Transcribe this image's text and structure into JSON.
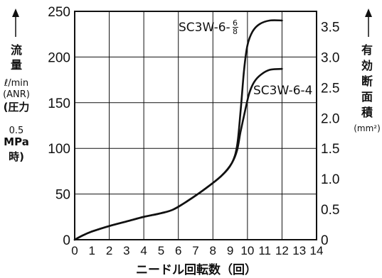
{
  "chart_data": {
    "type": "line",
    "x": {
      "label": "ニードル回転数（回）",
      "range": [
        0,
        14
      ],
      "tick_labels": [
        "0",
        "1",
        "2",
        "3",
        "4",
        "5",
        "6",
        "7",
        "8",
        "9",
        "10",
        "11",
        "12",
        "13",
        "14"
      ]
    },
    "y_left": {
      "label_lines": [
        "流",
        "量",
        "ℓ/min",
        "(ANR)",
        "(圧力",
        "0.5",
        "MPa",
        "時)"
      ],
      "range": [
        0,
        250
      ],
      "tick_labels": [
        "0",
        "50",
        "100",
        "150",
        "200",
        "250"
      ]
    },
    "y_right": {
      "label_lines": [
        "有",
        "効",
        "断",
        "面",
        "積",
        "(mm²)"
      ],
      "range": [
        0,
        3.75
      ],
      "tick_labels": [
        "0",
        "0.5",
        "1.0",
        "1.5",
        "2.0",
        "2.5",
        "3.0",
        "3.5"
      ]
    },
    "grid": true,
    "series": [
      {
        "name": "SC3W-6-4",
        "points": [
          [
            0,
            0
          ],
          [
            0.5,
            5
          ],
          [
            1,
            9
          ],
          [
            2,
            15
          ],
          [
            3,
            20
          ],
          [
            4,
            25
          ],
          [
            5,
            29
          ],
          [
            5.7,
            33
          ],
          [
            6.5,
            42
          ],
          [
            7.5,
            55
          ],
          [
            8.5,
            70
          ],
          [
            9.1,
            84
          ],
          [
            9.4,
            98
          ],
          [
            9.6,
            118
          ],
          [
            9.85,
            140
          ],
          [
            10.1,
            160
          ],
          [
            10.4,
            173
          ],
          [
            10.8,
            181
          ],
          [
            11.3,
            186
          ],
          [
            12,
            187
          ]
        ]
      },
      {
        "name": "SC3W-6-6/8",
        "name_parts": {
          "base": "SC3W-6-",
          "sup": "6",
          "sub": "8"
        },
        "points": [
          [
            0,
            0
          ],
          [
            0.5,
            5
          ],
          [
            1,
            9
          ],
          [
            2,
            15
          ],
          [
            3,
            20
          ],
          [
            4,
            25
          ],
          [
            5,
            29
          ],
          [
            5.7,
            33
          ],
          [
            6.5,
            42
          ],
          [
            7.5,
            55
          ],
          [
            8.5,
            70
          ],
          [
            9.1,
            84
          ],
          [
            9.4,
            103
          ],
          [
            9.6,
            140
          ],
          [
            9.8,
            185
          ],
          [
            10.0,
            213
          ],
          [
            10.3,
            228
          ],
          [
            10.7,
            236
          ],
          [
            11.3,
            240
          ],
          [
            12,
            240
          ]
        ]
      }
    ]
  }
}
